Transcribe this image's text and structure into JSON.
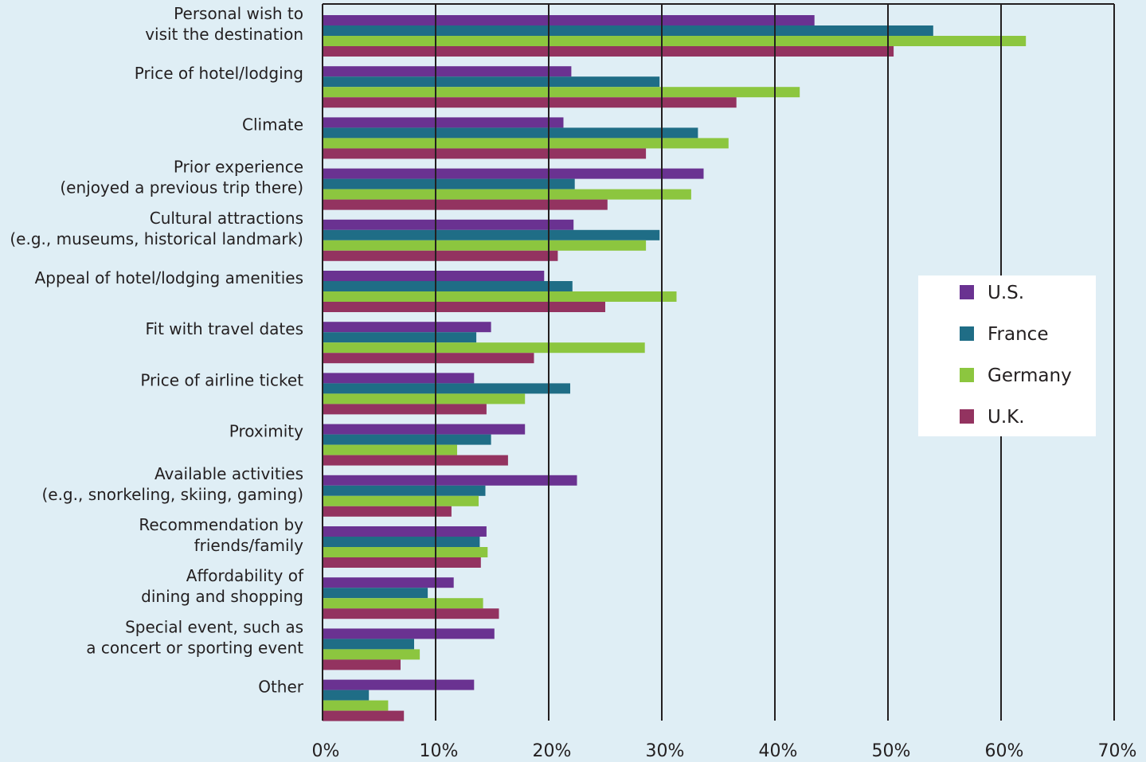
{
  "chart_data": {
    "type": "bar",
    "orientation": "horizontal",
    "categories": [
      [
        "Personal wish to",
        "visit the destination"
      ],
      [
        "Price of hotel/lodging"
      ],
      [
        "Climate"
      ],
      [
        "Prior experience",
        "(enjoyed a previous trip there)"
      ],
      [
        "Cultural attractions",
        "(e.g., museums, historical landmark)"
      ],
      [
        "Appeal of hotel/lodging amenities"
      ],
      [
        "Fit with travel dates"
      ],
      [
        "Price of airline ticket"
      ],
      [
        "Proximity"
      ],
      [
        "Available activities",
        "(e.g., snorkeling, skiing, gaming)"
      ],
      [
        "Recommendation by",
        "friends/family"
      ],
      [
        "Affordability of",
        "dining and shopping"
      ],
      [
        "Special event, such as",
        "a concert or sporting event"
      ],
      [
        "Other"
      ]
    ],
    "series": [
      {
        "name": "U.S.",
        "color": "#6a3291",
        "values": [
          43.5,
          22,
          21.3,
          33.7,
          22.2,
          19.6,
          14.9,
          13.4,
          17.9,
          22.5,
          14.5,
          11.6,
          15.2,
          13.4
        ]
      },
      {
        "name": "France",
        "color": "#1f6d86",
        "values": [
          54,
          29.8,
          33.2,
          22.3,
          29.8,
          22.1,
          13.6,
          21.9,
          14.9,
          14.4,
          13.9,
          9.3,
          8.1,
          4.1
        ]
      },
      {
        "name": "Germany",
        "color": "#8cc63f",
        "values": [
          62.2,
          42.2,
          35.9,
          32.6,
          28.6,
          31.3,
          28.5,
          17.9,
          11.9,
          13.8,
          14.6,
          14.2,
          8.6,
          5.8
        ]
      },
      {
        "name": "U.K.",
        "color": "#933360",
        "values": [
          50.5,
          36.6,
          28.6,
          25.2,
          20.8,
          25,
          18.7,
          14.5,
          16.4,
          11.4,
          14,
          15.6,
          6.9,
          7.2
        ]
      }
    ],
    "xlim": [
      0,
      70
    ],
    "xticks": [
      "0%",
      "10%",
      "20%",
      "30%",
      "40%",
      "50%",
      "60%",
      "70%"
    ],
    "grid": true,
    "legend_position": "right"
  }
}
